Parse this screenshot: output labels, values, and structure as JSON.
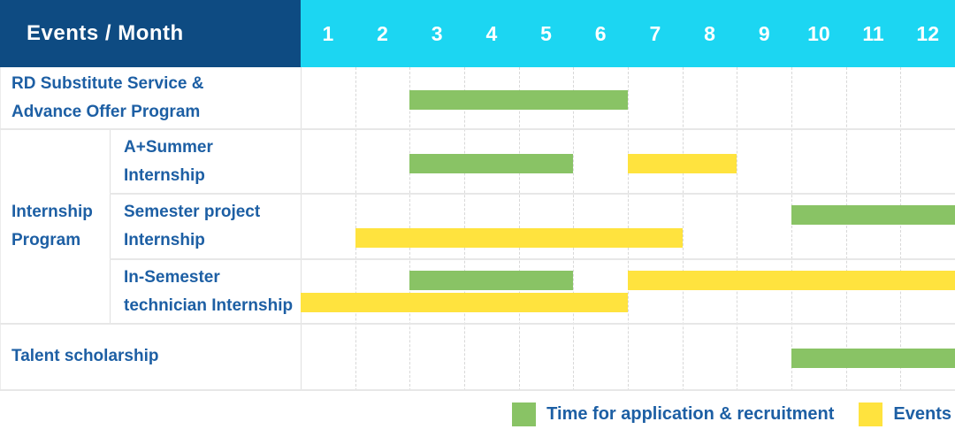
{
  "header": {
    "title": "Events / Month",
    "months": [
      "1",
      "2",
      "3",
      "4",
      "5",
      "6",
      "7",
      "8",
      "9",
      "10",
      "11",
      "12"
    ]
  },
  "colors": {
    "header_bg": "#0e4b82",
    "month_header_bg": "#1cd6f2",
    "label_text": "#1d5fa4",
    "recruitment_green": "#89c365",
    "event_yellow": "#ffe33e"
  },
  "chart_data": {
    "type": "gantt",
    "title": "Events / Month",
    "x_axis": {
      "label": "Month",
      "range": [
        1,
        12
      ]
    },
    "legend": [
      {
        "key": "recruitment",
        "label": "Time for application & recruitment",
        "color": "#89c365"
      },
      {
        "key": "event",
        "label": "Events",
        "color": "#ffe33e"
      }
    ],
    "rows": [
      {
        "group": "",
        "label": "RD Substitute Service & Advance Offer Program",
        "lines": [
          "RD Substitute Service &",
          "Advance Offer Program"
        ],
        "bars": [
          {
            "type": "recruitment",
            "start": 3,
            "end": 6,
            "lane": "center"
          }
        ]
      },
      {
        "group": "Internship Program",
        "group_lines": [
          "Internship",
          "Program"
        ],
        "label": "A+Summer Internship",
        "lines": [
          "A+Summer",
          "Internship"
        ],
        "bars": [
          {
            "type": "recruitment",
            "start": 3,
            "end": 5,
            "lane": "center"
          },
          {
            "type": "event",
            "start": 7,
            "end": 8,
            "lane": "center"
          }
        ]
      },
      {
        "group": "Internship Program",
        "label": "Semester project Internship",
        "lines": [
          "Semester project",
          "Internship"
        ],
        "bars": [
          {
            "type": "recruitment",
            "start": 10,
            "end": 12,
            "lane": "top"
          },
          {
            "type": "event",
            "start": 2,
            "end": 7,
            "lane": "bottom"
          }
        ]
      },
      {
        "group": "Internship Program",
        "label": "In-Semester technician Internship",
        "lines": [
          "In-Semester",
          "technician Internship"
        ],
        "bars": [
          {
            "type": "recruitment",
            "start": 3,
            "end": 5,
            "lane": "top"
          },
          {
            "type": "event",
            "start": 7,
            "end": 12,
            "lane": "top"
          },
          {
            "type": "event",
            "start": 1,
            "end": 6,
            "lane": "bottom"
          }
        ]
      },
      {
        "group": "",
        "label": "Talent scholarship",
        "lines": [
          "Talent scholarship"
        ],
        "bars": [
          {
            "type": "recruitment",
            "start": 10,
            "end": 12,
            "lane": "center"
          }
        ]
      }
    ]
  }
}
